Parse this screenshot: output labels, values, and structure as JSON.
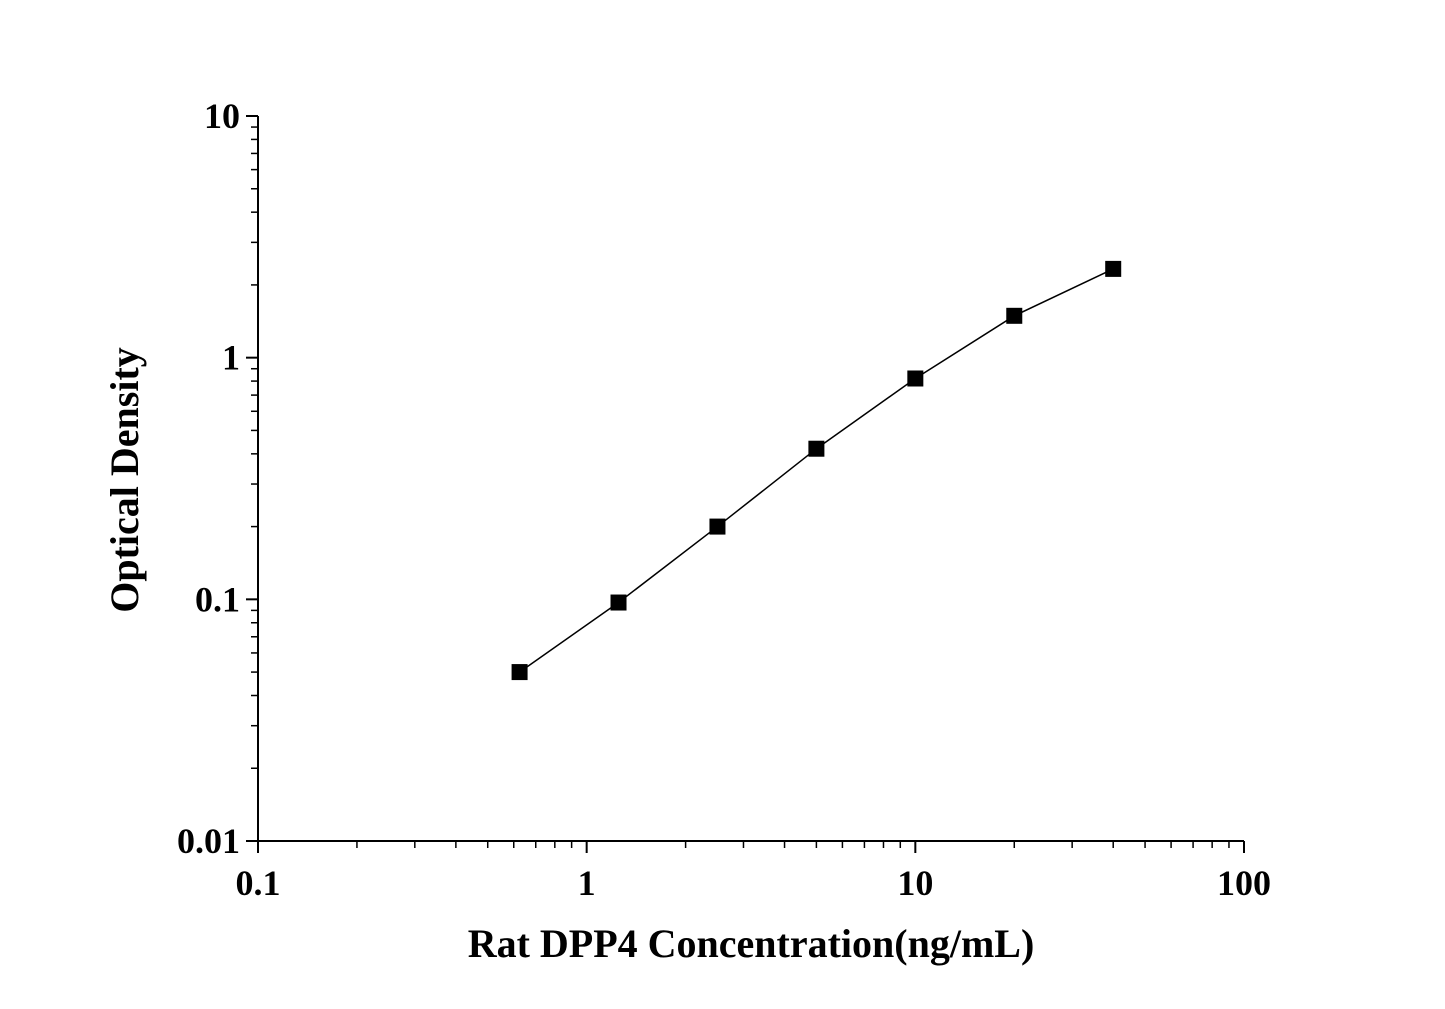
{
  "chart_data": {
    "type": "line",
    "xlabel": "Rat DPP4 Concentration(ng/mL)",
    "ylabel": "Optical Density",
    "xscale": "log",
    "yscale": "log",
    "xlim": [
      0.1,
      100
    ],
    "ylim": [
      0.01,
      10
    ],
    "xticks": [
      "0.1",
      "1",
      "10",
      "100"
    ],
    "yticks": [
      "0.01",
      "0.1",
      "1",
      "10"
    ],
    "grid": false,
    "marker": "square",
    "color": "#000000",
    "series": [
      {
        "x": [
          0.625,
          1.25,
          2.5,
          5,
          10,
          20,
          40
        ],
        "y": [
          0.05,
          0.097,
          0.2,
          0.42,
          0.82,
          1.49,
          2.33
        ]
      }
    ]
  }
}
